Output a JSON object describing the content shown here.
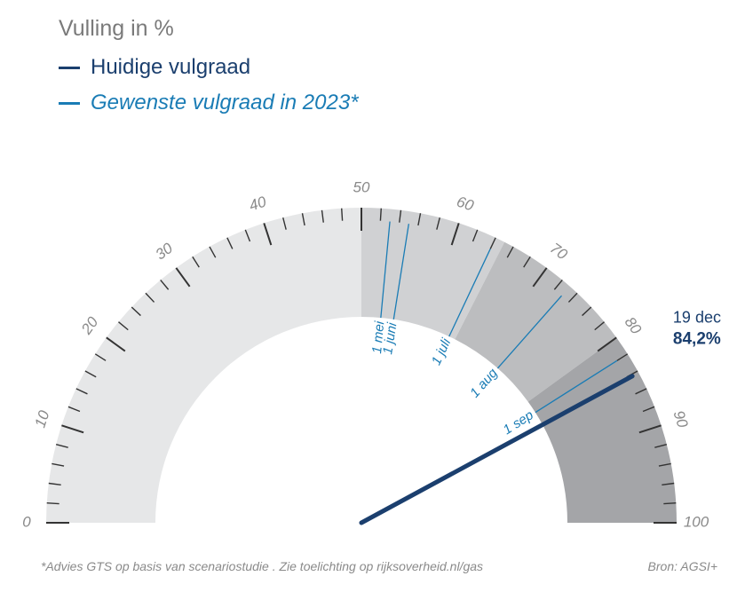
{
  "chart_data": {
    "type": "gauge",
    "title": "Vulling in %",
    "range": [
      0,
      100
    ],
    "major_ticks": [
      0,
      10,
      20,
      30,
      40,
      50,
      60,
      70,
      80,
      90,
      100
    ],
    "legend": {
      "current_label": "Huidige vulgraad",
      "target_label": "Gewenste vulgraad in 2023*"
    },
    "current": {
      "date": "19 dec",
      "value": 84.2,
      "value_label": "84,2%"
    },
    "targets": [
      {
        "label": "1 mei",
        "value": 53
      },
      {
        "label": "1 juni",
        "value": 55
      },
      {
        "label": "1 juli",
        "value": 64
      },
      {
        "label": "1 aug",
        "value": 73
      },
      {
        "label": "1 sep",
        "value": 82
      }
    ],
    "bands": [
      {
        "from": 0,
        "to": 50,
        "color": "#e6e7e8"
      },
      {
        "from": 50,
        "to": 65,
        "color": "#d0d1d3"
      },
      {
        "from": 65,
        "to": 80,
        "color": "#bcbdbf"
      },
      {
        "from": 80,
        "to": 100,
        "color": "#a4a5a8"
      }
    ]
  },
  "footnote": "*Advies GTS op basis van scenariostudie . Zie toelichting op rijksoverheid.nl/gas",
  "source": "Bron: AGSI+",
  "colors": {
    "current": "#1b3f6e",
    "target": "#1a7cb5",
    "tick": "#333333",
    "label": "#8a8a8a"
  }
}
